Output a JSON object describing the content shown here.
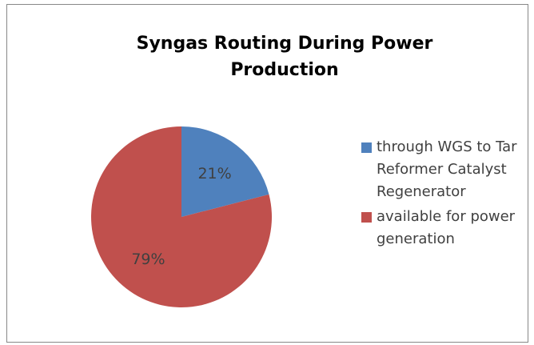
{
  "chart_data": {
    "type": "pie",
    "title": "Syngas Routing During Power Production",
    "labels": [
      "through WGS to Tar Reformer Catalyst Regenerator",
      "available for power generation"
    ],
    "values": [
      21,
      79
    ],
    "value_labels": [
      "21%",
      "79%"
    ],
    "colors": [
      "#4f81bd",
      "#c0504d"
    ],
    "legend": "right"
  }
}
